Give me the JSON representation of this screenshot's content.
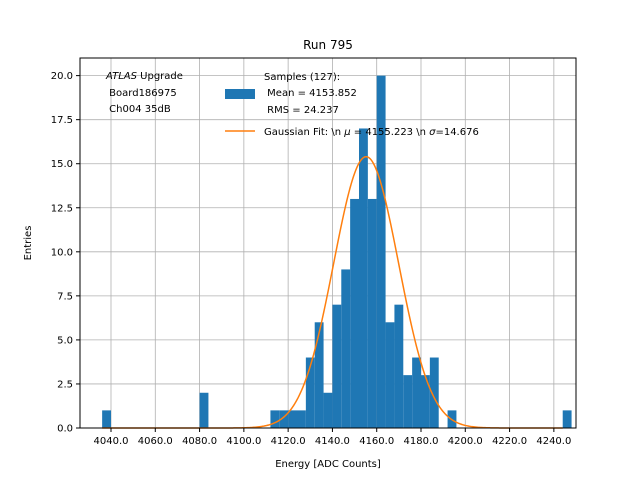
{
  "chart_data": {
    "type": "bar",
    "title": "Run 795",
    "xlabel": "Energy [ADC Counts]",
    "ylabel": "Entries",
    "xlim": [
      4026,
      4250
    ],
    "ylim": [
      0,
      21
    ],
    "grid": true,
    "xticks": [
      4040,
      4060,
      4080,
      4100,
      4120,
      4140,
      4160,
      4180,
      4200,
      4220,
      4240
    ],
    "xtick_labels": [
      "4040.0",
      "4060.0",
      "4080.0",
      "4100.0",
      "4120.0",
      "4140.0",
      "4160.0",
      "4180.0",
      "4200.0",
      "4220.0",
      "4240.0"
    ],
    "yticks": [
      0,
      2.5,
      5,
      7.5,
      10,
      12.5,
      15,
      17.5,
      20
    ],
    "ytick_labels": [
      "0.0",
      "2.5",
      "5.0",
      "7.5",
      "10.0",
      "12.5",
      "15.0",
      "17.5",
      "20.0"
    ],
    "bin_width": 4,
    "bins": [
      {
        "left": 4036,
        "count": 1
      },
      {
        "left": 4080,
        "count": 2
      },
      {
        "left": 4112,
        "count": 1
      },
      {
        "left": 4116,
        "count": 1
      },
      {
        "left": 4120,
        "count": 1
      },
      {
        "left": 4124,
        "count": 1
      },
      {
        "left": 4128,
        "count": 4
      },
      {
        "left": 4132,
        "count": 6
      },
      {
        "left": 4136,
        "count": 2
      },
      {
        "left": 4140,
        "count": 7
      },
      {
        "left": 4144,
        "count": 9
      },
      {
        "left": 4148,
        "count": 13
      },
      {
        "left": 4152,
        "count": 17
      },
      {
        "left": 4156,
        "count": 13
      },
      {
        "left": 4160,
        "count": 20
      },
      {
        "left": 4164,
        "count": 6
      },
      {
        "left": 4168,
        "count": 7
      },
      {
        "left": 4172,
        "count": 3
      },
      {
        "left": 4176,
        "count": 4
      },
      {
        "left": 4180,
        "count": 3
      },
      {
        "left": 4184,
        "count": 4
      },
      {
        "left": 4192,
        "count": 1
      },
      {
        "left": 4244,
        "count": 1
      }
    ],
    "fit": {
      "mu": 4155.223,
      "sigma": 14.676,
      "amplitude": 15.4
    },
    "hist_color": "#1f77b4",
    "fit_color": "#ff7f0e",
    "legend": {
      "placement": "upper-right",
      "hist_label_lines": [
        "Samples (127):",
        " Mean = 4153.852",
        " RMS = 24.237"
      ],
      "fit_label": "Gaussian Fit: \\n $\\mu$ = 4155.223 \\n $\\sigma$=14.676"
    },
    "annotation_lines": [
      "ATLAS Upgrade",
      " Board186975",
      " Ch004 35dB"
    ]
  }
}
